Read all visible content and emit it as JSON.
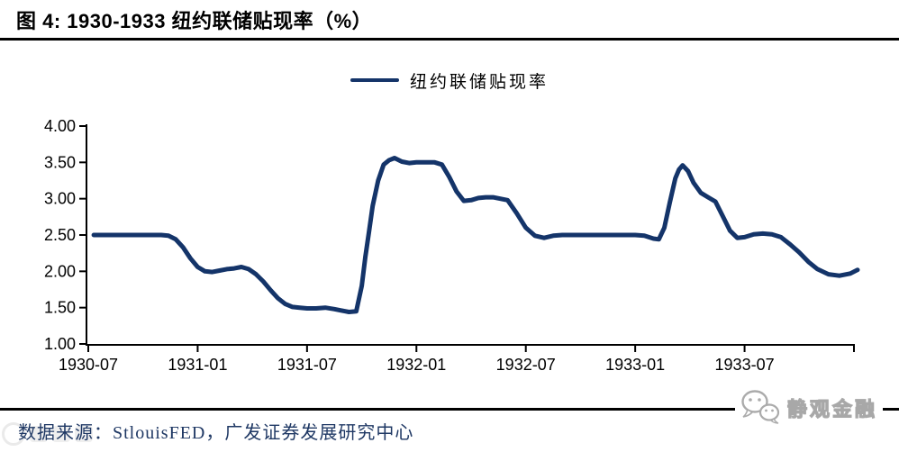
{
  "header": {
    "title": "图 4: 1930-1933 纽约联储贴现率（%）"
  },
  "legend": {
    "label": "纽约联储贴现率"
  },
  "colors": {
    "line": "#143469",
    "axis": "#000000",
    "footer_text": "#1f3864",
    "rule": "#000000"
  },
  "chart_data": {
    "type": "line",
    "title": "1930-1933 纽约联储贴现率（%）",
    "xlabel": "",
    "ylabel": "",
    "x_unit": "months since 1930-07",
    "ylim": [
      1.0,
      4.0
    ],
    "grid": false,
    "legend_position": "top-center",
    "y_ticks": [
      4.0,
      3.5,
      3.0,
      2.5,
      2.0,
      1.5,
      1.0
    ],
    "y_tick_labels": [
      "4.00",
      "3.50",
      "3.00",
      "2.50",
      "2.00",
      "1.50",
      "1.00"
    ],
    "x_ticks": [
      {
        "m": 0,
        "label": "1930-07"
      },
      {
        "m": 6,
        "label": "1931-01"
      },
      {
        "m": 12,
        "label": "1931-07"
      },
      {
        "m": 18,
        "label": "1932-01"
      },
      {
        "m": 24,
        "label": "1932-07"
      },
      {
        "m": 30,
        "label": "1933-01"
      },
      {
        "m": 36,
        "label": "1933-07"
      },
      {
        "m": 42,
        "label": ""
      }
    ],
    "series": [
      {
        "name": "纽约联储贴现率",
        "color": "#143469",
        "stroke_width": 5,
        "points": [
          [
            0.3,
            2.5
          ],
          [
            1,
            2.5
          ],
          [
            1.5,
            2.5
          ],
          [
            2,
            2.5
          ],
          [
            2.5,
            2.5
          ],
          [
            3,
            2.5
          ],
          [
            3.5,
            2.5
          ],
          [
            4,
            2.5
          ],
          [
            4.4,
            2.49
          ],
          [
            4.8,
            2.44
          ],
          [
            5.2,
            2.33
          ],
          [
            5.6,
            2.18
          ],
          [
            6,
            2.06
          ],
          [
            6.4,
            2.0
          ],
          [
            6.8,
            1.99
          ],
          [
            7.2,
            2.01
          ],
          [
            7.6,
            2.03
          ],
          [
            8,
            2.04
          ],
          [
            8.4,
            2.06
          ],
          [
            8.8,
            2.03
          ],
          [
            9.2,
            1.96
          ],
          [
            9.6,
            1.86
          ],
          [
            10,
            1.74
          ],
          [
            10.4,
            1.63
          ],
          [
            10.8,
            1.55
          ],
          [
            11.2,
            1.51
          ],
          [
            11.6,
            1.5
          ],
          [
            12,
            1.49
          ],
          [
            12.5,
            1.49
          ],
          [
            13,
            1.5
          ],
          [
            13.5,
            1.48
          ],
          [
            13.9,
            1.46
          ],
          [
            14.3,
            1.44
          ],
          [
            14.7,
            1.45
          ],
          [
            15,
            1.8
          ],
          [
            15.2,
            2.2
          ],
          [
            15.4,
            2.55
          ],
          [
            15.6,
            2.9
          ],
          [
            15.9,
            3.25
          ],
          [
            16.2,
            3.47
          ],
          [
            16.5,
            3.53
          ],
          [
            16.8,
            3.56
          ],
          [
            17.2,
            3.51
          ],
          [
            17.6,
            3.49
          ],
          [
            18,
            3.5
          ],
          [
            18.5,
            3.5
          ],
          [
            19,
            3.5
          ],
          [
            19.4,
            3.47
          ],
          [
            19.8,
            3.3
          ],
          [
            20.2,
            3.1
          ],
          [
            20.6,
            2.97
          ],
          [
            21,
            2.98
          ],
          [
            21.4,
            3.01
          ],
          [
            21.8,
            3.02
          ],
          [
            22.2,
            3.02
          ],
          [
            22.6,
            3.0
          ],
          [
            23,
            2.98
          ],
          [
            23.5,
            2.8
          ],
          [
            24,
            2.6
          ],
          [
            24.5,
            2.49
          ],
          [
            25,
            2.46
          ],
          [
            25.5,
            2.49
          ],
          [
            26,
            2.5
          ],
          [
            26.5,
            2.5
          ],
          [
            27,
            2.5
          ],
          [
            27.5,
            2.5
          ],
          [
            28,
            2.5
          ],
          [
            28.5,
            2.5
          ],
          [
            29,
            2.5
          ],
          [
            29.5,
            2.5
          ],
          [
            30,
            2.5
          ],
          [
            30.5,
            2.49
          ],
          [
            31,
            2.45
          ],
          [
            31.3,
            2.44
          ],
          [
            31.6,
            2.6
          ],
          [
            31.9,
            2.95
          ],
          [
            32.2,
            3.28
          ],
          [
            32.4,
            3.4
          ],
          [
            32.6,
            3.46
          ],
          [
            32.9,
            3.38
          ],
          [
            33.2,
            3.22
          ],
          [
            33.6,
            3.08
          ],
          [
            34,
            3.02
          ],
          [
            34.4,
            2.96
          ],
          [
            34.8,
            2.76
          ],
          [
            35.2,
            2.56
          ],
          [
            35.6,
            2.46
          ],
          [
            36,
            2.47
          ],
          [
            36.5,
            2.51
          ],
          [
            37,
            2.52
          ],
          [
            37.5,
            2.51
          ],
          [
            38,
            2.47
          ],
          [
            38.5,
            2.37
          ],
          [
            39,
            2.26
          ],
          [
            39.5,
            2.13
          ],
          [
            40,
            2.03
          ],
          [
            40.6,
            1.96
          ],
          [
            41.2,
            1.94
          ],
          [
            41.8,
            1.97
          ],
          [
            42.2,
            2.02
          ]
        ]
      }
    ]
  },
  "footer": {
    "source": "数据来源：StlouisFED，广发证券发展研究中心"
  },
  "brand": {
    "name": "静观金融"
  }
}
